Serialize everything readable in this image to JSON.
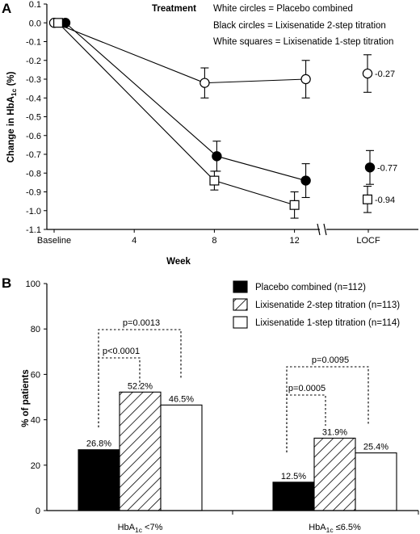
{
  "chart_data": [
    {
      "panel": "A",
      "type": "line",
      "legend_title": "Treatment",
      "legend_entries": [
        "White circles = Placebo combined",
        "Black circles = Lixisenatide 2-step titration",
        "White squares = Lixisenatide 1-step titration"
      ],
      "xlabel": "Week",
      "ylabel_main": "Change in HbA",
      "ylabel_sub": "1c",
      "ylabel_unit": " (%)",
      "x_ticks": [
        "Baseline",
        "4",
        "8",
        "12",
        "LOCF"
      ],
      "y_ticks": [
        "0.1",
        "0.0",
        "-0.1",
        "-0.2",
        "-0.3",
        "-0.4",
        "-0.5",
        "-0.6",
        "-0.7",
        "-0.8",
        "-0.9",
        "-1.0",
        "-1.1"
      ],
      "ylim": [
        -1.1,
        0.1
      ],
      "axis_break": true,
      "series": [
        {
          "marker": "circle-open",
          "points": [
            {
              "week": 0,
              "y": 0.0,
              "err": 0
            },
            {
              "week": 8,
              "y": -0.32,
              "err": 0.08
            },
            {
              "week": 12,
              "y": -0.3,
              "err": 0.1
            }
          ],
          "locf": {
            "y": -0.27,
            "err": 0.1,
            "label": "-0.27"
          }
        },
        {
          "marker": "circle-filled",
          "points": [
            {
              "week": 0,
              "y": 0.0,
              "err": 0
            },
            {
              "week": 8,
              "y": -0.71,
              "err": 0.08
            },
            {
              "week": 12,
              "y": -0.84,
              "err": 0.09
            }
          ],
          "locf": {
            "y": -0.77,
            "err": 0.09,
            "label": "-0.77"
          }
        },
        {
          "marker": "square-open",
          "points": [
            {
              "week": 0,
              "y": 0.0,
              "err": 0
            },
            {
              "week": 8,
              "y": -0.84,
              "err": 0.05
            },
            {
              "week": 12,
              "y": -0.97,
              "err": 0.07
            }
          ],
          "locf": {
            "y": -0.94,
            "err": 0.07,
            "label": "-0.94"
          }
        }
      ]
    },
    {
      "panel": "B",
      "type": "bar",
      "ylabel": "% of patients",
      "ylim": [
        0,
        100
      ],
      "y_ticks": [
        "0",
        "20",
        "40",
        "60",
        "80",
        "100"
      ],
      "categories": [
        {
          "main": "HbA",
          "sub": "1c",
          "suffix": " <7%"
        },
        {
          "main": "HbA",
          "sub": "1c",
          "suffix": " ≤6.5%"
        }
      ],
      "series": [
        {
          "name": "Placebo combined (n=112)",
          "fill": "#000000",
          "values": [
            26.8,
            12.5
          ],
          "labels": [
            "26.8%",
            "12.5%"
          ]
        },
        {
          "name": "Lixisenatide 2-step titration (n=113)",
          "fill": "hatch",
          "values": [
            52.2,
            31.9
          ],
          "labels": [
            "52.2%",
            "31.9%"
          ]
        },
        {
          "name": "Lixisenatide 1-step titration (n=114)",
          "fill": "#ffffff",
          "values": [
            46.5,
            25.4
          ],
          "labels": [
            "46.5%",
            "25.4%"
          ]
        }
      ],
      "comparisons": [
        {
          "category": 0,
          "vs_series": 1,
          "p": "p<0.0001"
        },
        {
          "category": 0,
          "vs_series": 2,
          "p": "p=0.0013"
        },
        {
          "category": 1,
          "vs_series": 1,
          "p": "p=0.0005"
        },
        {
          "category": 1,
          "vs_series": 2,
          "p": "p=0.0095"
        }
      ]
    }
  ]
}
